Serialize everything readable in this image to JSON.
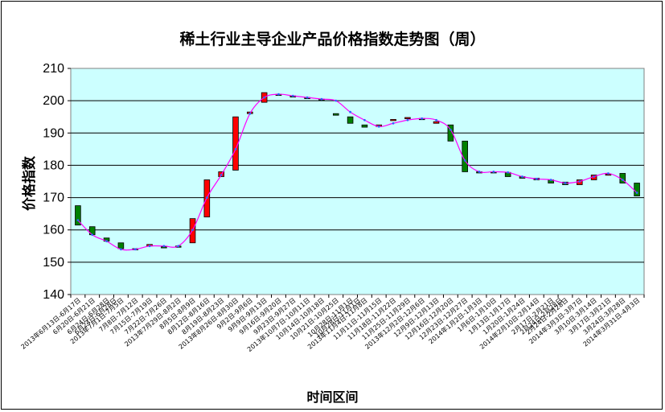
{
  "chart_data": {
    "type": "line",
    "title": "稀土行业主导企业产品价格指数走势图（周）",
    "xlabel": "时间区间",
    "ylabel": "价格指数",
    "ylim": [
      140,
      210
    ],
    "yticks": [
      140,
      150,
      160,
      170,
      180,
      190,
      200,
      210
    ],
    "grid": true,
    "legend": "none",
    "plot_bg": "#ccffff",
    "line_color": "#ff00ff",
    "up_color": "#ff0000",
    "down_color": "#008000",
    "x_extra_labels": [
      "6月24日-6月28日",
      "10月28日-11月1日",
      "2月24日-2月28日"
    ],
    "x": [
      "2013年6月13日-6月17日",
      "6月20日-6月21日",
      "6月24日-6月28日",
      "2013年7月1日-7月5日",
      "7月8日-7月12日",
      "7月15日-7月19日",
      "7月22日-7月26日",
      "2013年7月29日-8月2日",
      "8月5日-8月9日",
      "8月12日-8月16日",
      "8月19日-8月23日",
      "2013年8月26日-8月30日",
      "9月2日-9月6日",
      "9月9日-9月13日",
      "9月16日-9月20日",
      "9月23日-9月27日",
      "2013年10月7日-10月11日",
      "10月14日-10月18日",
      "10月21日-10月25日",
      "10月28日-11月1日",
      "2013年11月4日-11月8日",
      "11月11日-11月15日",
      "11月18日-11月22日",
      "11月25日-11月29日",
      "2013年12月2日-12月6日",
      "12月9日-12月13日",
      "12月16日-12月20日",
      "12月23日-12月27日",
      "2014年1月2日-1月3日",
      "1月6日-1月10日",
      "1月13日-1月17日",
      "1月20日-1月24日",
      "2014年2月10日-2月14日",
      "2月17日-2月21日",
      "2月24日-2月28日",
      "2014年3月3日-3月7日",
      "3月10日-3月14日",
      "3月17日-3月21日",
      "3月24日-3月28日",
      "2014年3月31日-4月3日"
    ],
    "series": [
      {
        "open": [
          167.5,
          161.0,
          157.5,
          156.0,
          154.2,
          155.0,
          154.8,
          155.0,
          156.0,
          164.0,
          176.5,
          178.5,
          196.0,
          199.5,
          202.0,
          201.5,
          201.0,
          200.5,
          196.0,
          195.0,
          192.5,
          192.0,
          194.0,
          194.5,
          194.5,
          193.0,
          192.5,
          187.5,
          178.0,
          178.0,
          177.8,
          176.5,
          176.0,
          175.5,
          174.8,
          174.0,
          175.5,
          177.0,
          177.5,
          174.5
        ],
        "close": [
          161.5,
          158.5,
          156.5,
          154.2,
          154.0,
          155.5,
          154.5,
          154.8,
          163.5,
          175.5,
          178.0,
          195.0,
          196.5,
          202.5,
          202.0,
          201.5,
          200.8,
          200.5,
          195.5,
          193.0,
          191.8,
          192.5,
          194.2,
          194.8,
          194.2,
          193.5,
          187.5,
          178.0,
          178.0,
          177.8,
          176.5,
          176.0,
          175.5,
          174.5,
          174.0,
          175.5,
          177.0,
          177.3,
          174.5,
          170.5
        ],
        "line": [
          163.0,
          158.5,
          156.5,
          154.0,
          154.0,
          155.0,
          155.0,
          155.0,
          160.0,
          170.0,
          177.0,
          185.0,
          196.0,
          201.0,
          202.0,
          201.5,
          201.0,
          200.5,
          200.0,
          196.5,
          194.0,
          192.0,
          193.0,
          194.0,
          194.5,
          194.0,
          191.0,
          181.5,
          178.0,
          178.0,
          177.8,
          176.5,
          175.8,
          175.5,
          174.5,
          175.0,
          176.5,
          177.5,
          175.5,
          171.5
        ]
      }
    ]
  }
}
